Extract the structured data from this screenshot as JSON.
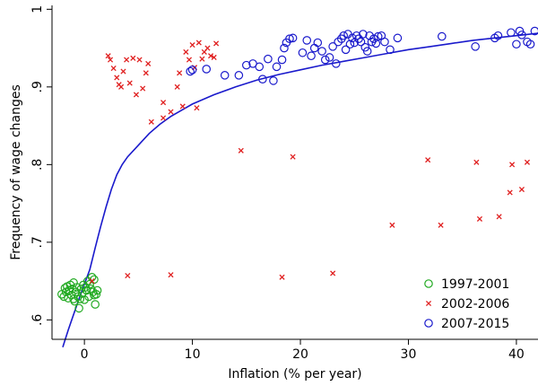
{
  "chart_data": {
    "type": "scatter",
    "title": "",
    "xlabel": "Inflation (% per year)",
    "ylabel": "Frequency of wage changes",
    "xlim": [
      -3,
      42
    ],
    "ylim": [
      0.575,
      1.005
    ],
    "x_ticks": [
      0,
      10,
      20,
      30,
      40
    ],
    "x_tick_labels": [
      "0",
      "10",
      "20",
      "30",
      "40"
    ],
    "y_ticks": [
      0.6,
      0.7,
      0.8,
      0.9,
      1.0
    ],
    "y_tick_labels": [
      ".6",
      ".7",
      ".8",
      ".9",
      "1"
    ],
    "grid": false,
    "legend_position": "bottom-right",
    "series": [
      {
        "name": "1997-2001",
        "marker": "circle",
        "color": "#22aa22",
        "points": [
          [
            -2.1,
            0.633
          ],
          [
            -1.9,
            0.63
          ],
          [
            -1.7,
            0.636
          ],
          [
            -1.6,
            0.643
          ],
          [
            -1.5,
            0.628
          ],
          [
            -1.4,
            0.638
          ],
          [
            -1.3,
            0.645
          ],
          [
            -1.2,
            0.632
          ],
          [
            -1.1,
            0.64
          ],
          [
            -1.0,
            0.648
          ],
          [
            -0.9,
            0.624
          ],
          [
            -0.8,
            0.636
          ],
          [
            -0.7,
            0.642
          ],
          [
            -0.6,
            0.63
          ],
          [
            -0.5,
            0.615
          ],
          [
            -0.4,
            0.627
          ],
          [
            -0.3,
            0.64
          ],
          [
            -0.2,
            0.634
          ],
          [
            -0.1,
            0.645
          ],
          [
            0.0,
            0.626
          ],
          [
            0.2,
            0.638
          ],
          [
            0.3,
            0.65
          ],
          [
            0.4,
            0.63
          ],
          [
            0.5,
            0.646
          ],
          [
            0.6,
            0.64
          ],
          [
            0.7,
            0.655
          ],
          [
            0.8,
            0.636
          ],
          [
            0.9,
            0.652
          ],
          [
            1.0,
            0.62
          ],
          [
            1.1,
            0.633
          ],
          [
            1.2,
            0.638
          ],
          [
            -1.8,
            0.641
          ],
          [
            -1.0,
            0.627
          ],
          [
            0.1,
            0.642
          ],
          [
            0.9,
            0.632
          ]
        ]
      },
      {
        "name": "2002-2006",
        "marker": "x",
        "color": "#e02020",
        "points": [
          [
            0.7,
            0.65
          ],
          [
            2.2,
            0.94
          ],
          [
            2.4,
            0.935
          ],
          [
            2.7,
            0.924
          ],
          [
            3.0,
            0.912
          ],
          [
            3.2,
            0.903
          ],
          [
            3.4,
            0.9
          ],
          [
            3.6,
            0.92
          ],
          [
            3.9,
            0.935
          ],
          [
            4.2,
            0.905
          ],
          [
            4.5,
            0.937
          ],
          [
            4.8,
            0.89
          ],
          [
            5.1,
            0.935
          ],
          [
            5.4,
            0.898
          ],
          [
            5.7,
            0.918
          ],
          [
            5.9,
            0.93
          ],
          [
            6.2,
            0.855
          ],
          [
            7.3,
            0.86
          ],
          [
            7.3,
            0.88
          ],
          [
            8.0,
            0.868
          ],
          [
            8.6,
            0.9
          ],
          [
            8.8,
            0.918
          ],
          [
            9.1,
            0.875
          ],
          [
            9.4,
            0.945
          ],
          [
            9.7,
            0.935
          ],
          [
            10.0,
            0.954
          ],
          [
            10.2,
            0.925
          ],
          [
            10.4,
            0.873
          ],
          [
            10.6,
            0.957
          ],
          [
            10.9,
            0.936
          ],
          [
            11.1,
            0.945
          ],
          [
            11.4,
            0.95
          ],
          [
            11.7,
            0.94
          ],
          [
            12.0,
            0.938
          ],
          [
            12.2,
            0.956
          ],
          [
            4.0,
            0.657
          ],
          [
            8.0,
            0.658
          ],
          [
            14.5,
            0.818
          ],
          [
            18.3,
            0.655
          ],
          [
            19.3,
            0.81
          ],
          [
            23.0,
            0.66
          ],
          [
            28.5,
            0.722
          ],
          [
            31.8,
            0.806
          ],
          [
            33.0,
            0.722
          ],
          [
            36.3,
            0.803
          ],
          [
            36.6,
            0.73
          ],
          [
            38.4,
            0.733
          ],
          [
            39.4,
            0.764
          ],
          [
            39.6,
            0.8
          ],
          [
            40.5,
            0.768
          ],
          [
            41.0,
            0.803
          ]
        ]
      },
      {
        "name": "2007-2015",
        "marker": "circle",
        "color": "#1a1acc",
        "points": [
          [
            9.8,
            0.92
          ],
          [
            10.0,
            0.922
          ],
          [
            11.3,
            0.923
          ],
          [
            13.0,
            0.915
          ],
          [
            14.3,
            0.915
          ],
          [
            15.0,
            0.928
          ],
          [
            15.6,
            0.93
          ],
          [
            16.2,
            0.926
          ],
          [
            16.5,
            0.91
          ],
          [
            17.0,
            0.936
          ],
          [
            17.5,
            0.908
          ],
          [
            17.8,
            0.926
          ],
          [
            18.3,
            0.935
          ],
          [
            18.5,
            0.95
          ],
          [
            18.7,
            0.957
          ],
          [
            19.0,
            0.962
          ],
          [
            19.3,
            0.963
          ],
          [
            20.2,
            0.944
          ],
          [
            20.6,
            0.96
          ],
          [
            21.0,
            0.94
          ],
          [
            21.3,
            0.95
          ],
          [
            21.6,
            0.957
          ],
          [
            22.0,
            0.946
          ],
          [
            22.3,
            0.935
          ],
          [
            22.7,
            0.938
          ],
          [
            23.0,
            0.952
          ],
          [
            23.3,
            0.93
          ],
          [
            23.5,
            0.958
          ],
          [
            23.8,
            0.962
          ],
          [
            24.0,
            0.966
          ],
          [
            24.2,
            0.948
          ],
          [
            24.4,
            0.968
          ],
          [
            24.6,
            0.955
          ],
          [
            24.8,
            0.963
          ],
          [
            25.0,
            0.957
          ],
          [
            25.2,
            0.966
          ],
          [
            25.4,
            0.962
          ],
          [
            25.6,
            0.958
          ],
          [
            25.8,
            0.968
          ],
          [
            26.0,
            0.951
          ],
          [
            26.2,
            0.946
          ],
          [
            26.4,
            0.966
          ],
          [
            26.6,
            0.958
          ],
          [
            26.8,
            0.962
          ],
          [
            27.0,
            0.956
          ],
          [
            27.2,
            0.965
          ],
          [
            27.5,
            0.966
          ],
          [
            27.8,
            0.958
          ],
          [
            28.3,
            0.948
          ],
          [
            29.0,
            0.963
          ],
          [
            33.1,
            0.965
          ],
          [
            36.2,
            0.952
          ],
          [
            38.0,
            0.963
          ],
          [
            38.3,
            0.966
          ],
          [
            39.5,
            0.97
          ],
          [
            40.0,
            0.955
          ],
          [
            40.3,
            0.972
          ],
          [
            40.5,
            0.967
          ],
          [
            41.0,
            0.958
          ],
          [
            41.3,
            0.955
          ],
          [
            41.7,
            0.972
          ]
        ]
      }
    ],
    "fit_curve": {
      "color": "#1a1acc",
      "points": [
        [
          -2.0,
          0.565
        ],
        [
          -1.5,
          0.587
        ],
        [
          -1.0,
          0.607
        ],
        [
          -0.5,
          0.627
        ],
        [
          0.0,
          0.646
        ],
        [
          0.5,
          0.665
        ],
        [
          1.0,
          0.693
        ],
        [
          1.5,
          0.72
        ],
        [
          2.0,
          0.745
        ],
        [
          2.5,
          0.768
        ],
        [
          3.0,
          0.787
        ],
        [
          3.5,
          0.8
        ],
        [
          4.0,
          0.81
        ],
        [
          5.0,
          0.825
        ],
        [
          6.0,
          0.84
        ],
        [
          7.0,
          0.852
        ],
        [
          8.0,
          0.862
        ],
        [
          9.0,
          0.87
        ],
        [
          10.0,
          0.878
        ],
        [
          12.0,
          0.89
        ],
        [
          14.0,
          0.9
        ],
        [
          16.0,
          0.909
        ],
        [
          18.0,
          0.916
        ],
        [
          20.0,
          0.922
        ],
        [
          22.0,
          0.928
        ],
        [
          24.0,
          0.933
        ],
        [
          26.0,
          0.938
        ],
        [
          28.0,
          0.943
        ],
        [
          30.0,
          0.948
        ],
        [
          32.0,
          0.952
        ],
        [
          34.0,
          0.956
        ],
        [
          36.0,
          0.96
        ],
        [
          38.0,
          0.963
        ],
        [
          40.0,
          0.966
        ],
        [
          42.0,
          0.969
        ]
      ]
    }
  }
}
